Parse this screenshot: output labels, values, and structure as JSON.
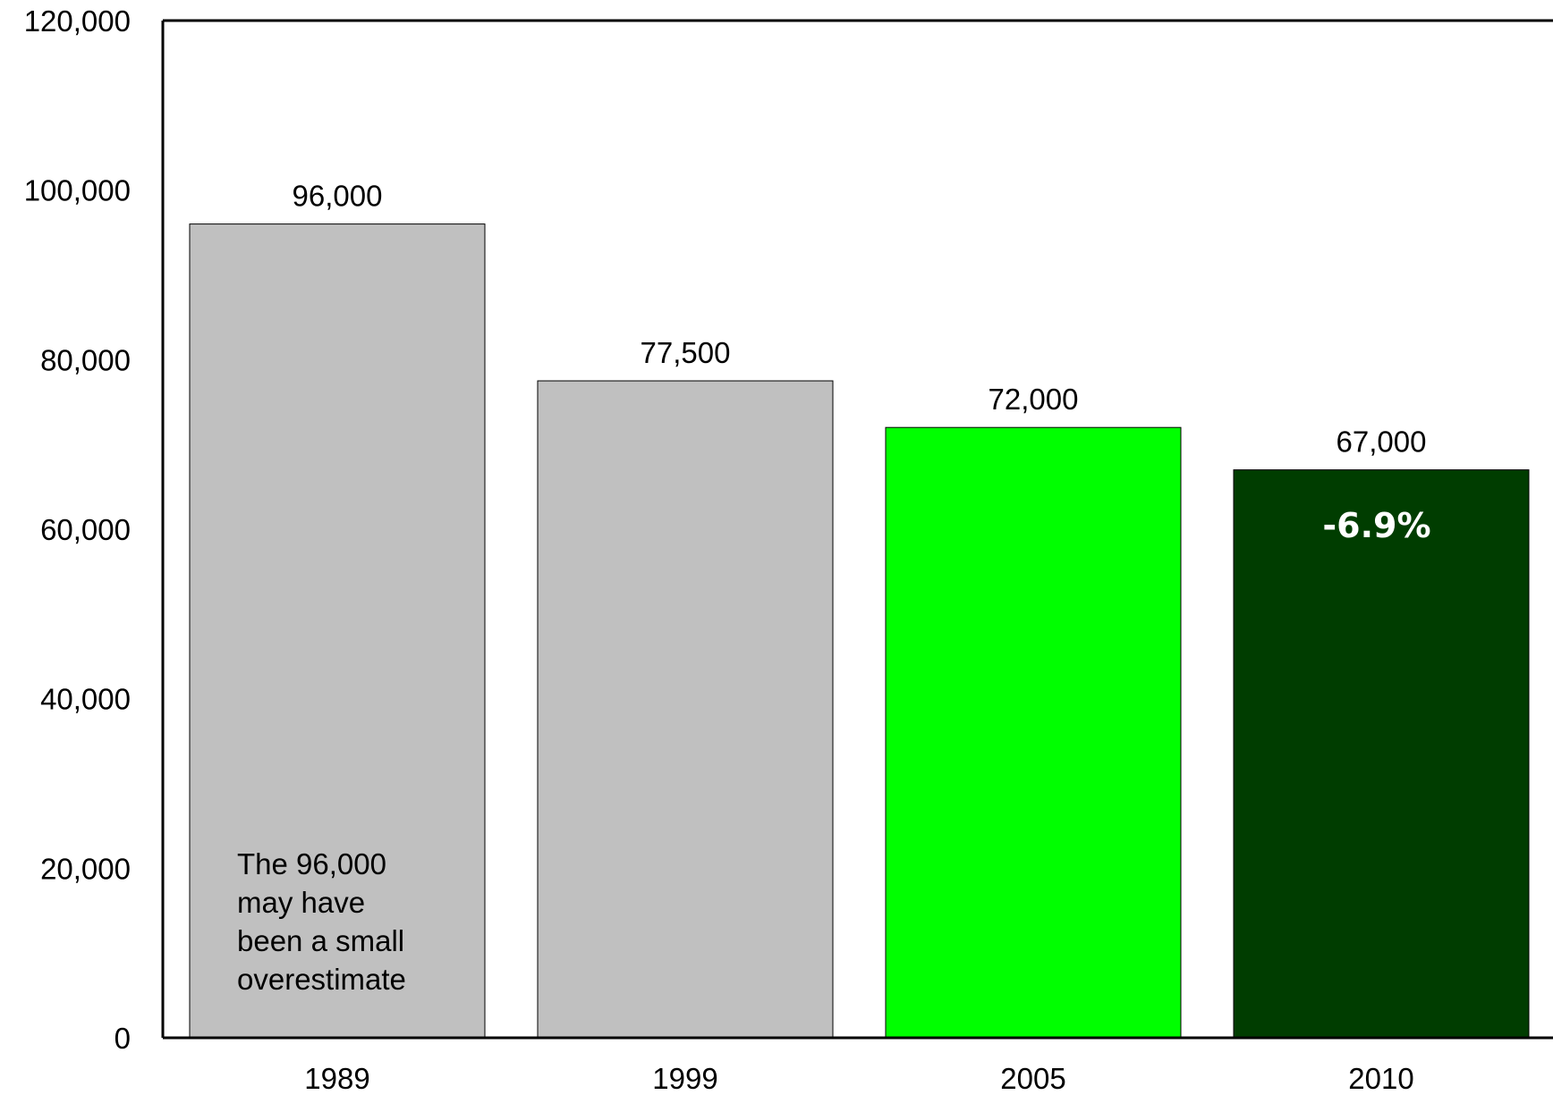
{
  "chart_data": {
    "type": "bar",
    "categories": [
      "1989",
      "1999",
      "2005",
      "2010"
    ],
    "values": [
      96000,
      77500,
      72000,
      67000
    ],
    "value_labels": [
      "96,000",
      "77,500",
      "72,000",
      "67,000"
    ],
    "bar_colors": [
      "#c0c0c0",
      "#c0c0c0",
      "#00ff00",
      "#003d00"
    ],
    "ylim": [
      0,
      120000
    ],
    "yticks": [
      0,
      20000,
      40000,
      60000,
      80000,
      100000,
      120000
    ],
    "ytick_labels": [
      "0",
      "20,000",
      "40,000",
      "60,000",
      "80,000",
      "100,000",
      "120,000"
    ],
    "title": "",
    "xlabel": "",
    "ylabel": "",
    "grid": false,
    "annotations": {
      "note_lines": [
        "The 96,000",
        "may have",
        "been a small",
        "overestimate"
      ],
      "change_label": "-6.9%",
      "change_color": "#ffffff"
    }
  }
}
